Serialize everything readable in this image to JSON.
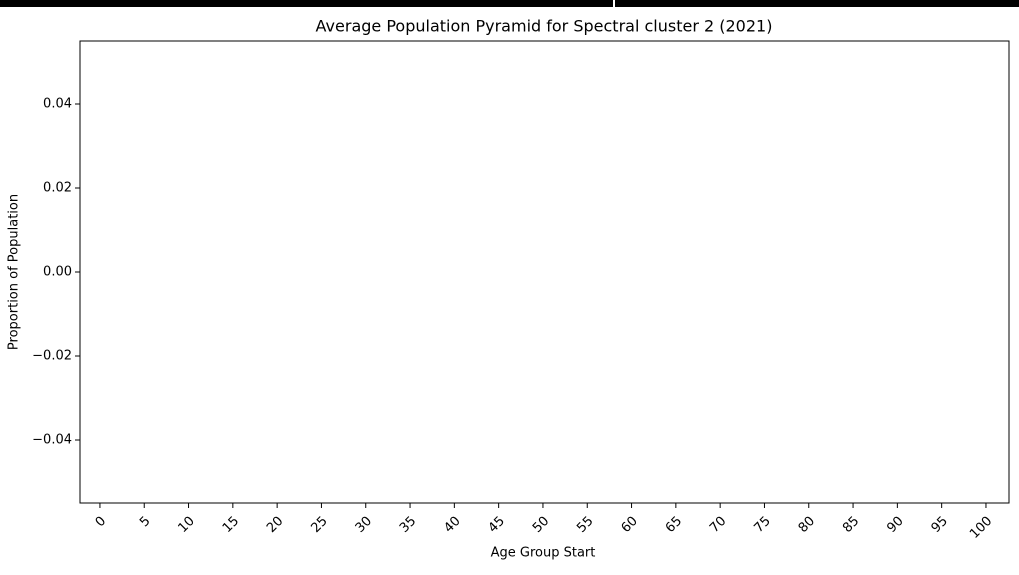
{
  "chart_data": {
    "type": "bar",
    "title": "Average Population Pyramid for Spectral cluster 2 (2021)",
    "xlabel": "Age Group Start",
    "ylabel": "Proportion of Population",
    "xlim": [
      -2.25,
      102.6
    ],
    "xticks": [
      0,
      5,
      10,
      15,
      20,
      25,
      30,
      35,
      40,
      45,
      50,
      55,
      60,
      65,
      70,
      75,
      80,
      85,
      90,
      95,
      100
    ],
    "ylim": [
      -0.055,
      0.055
    ],
    "yticks": [
      0.04,
      0.02,
      {
        "value": 0,
        "label": "0.00"
      },
      {
        "value": -0.02,
        "label": "−0.02"
      },
      {
        "value": -0.04,
        "label": "−0.04"
      }
    ]
  }
}
